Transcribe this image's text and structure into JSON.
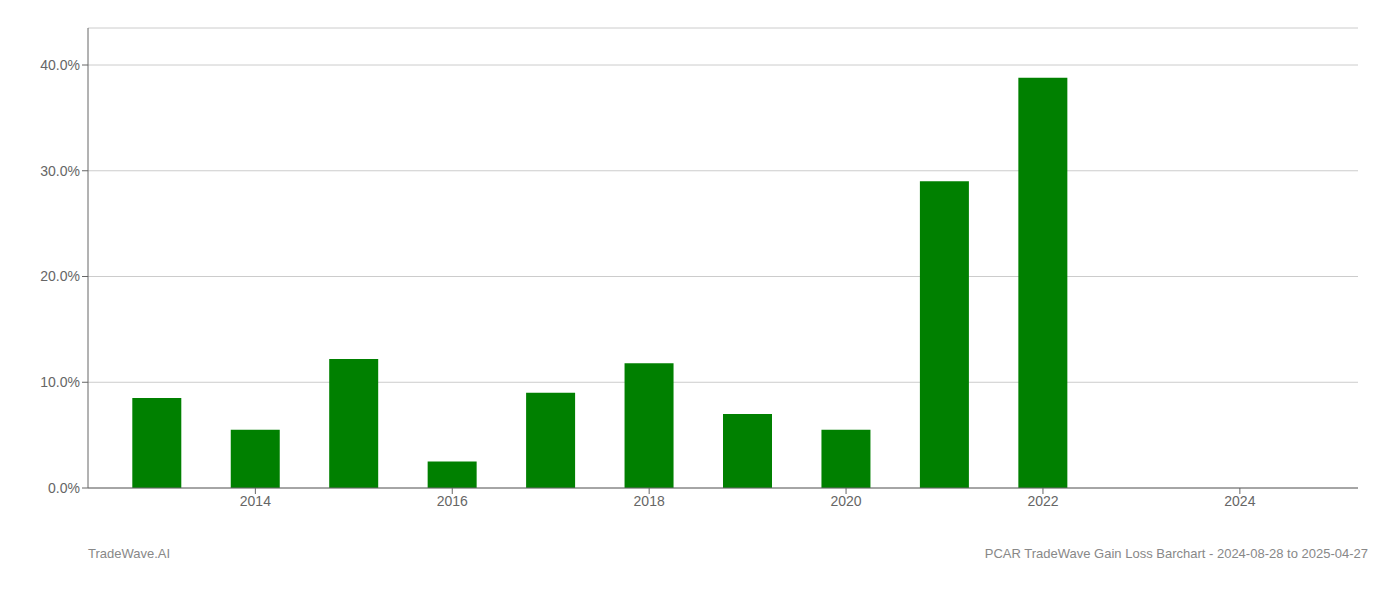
{
  "chart_data": {
    "type": "bar",
    "x": [
      2013,
      2014,
      2015,
      2016,
      2017,
      2018,
      2019,
      2020,
      2021,
      2022,
      2023
    ],
    "values": [
      0.085,
      0.055,
      0.122,
      0.025,
      0.09,
      0.118,
      0.07,
      0.055,
      0.29,
      0.388,
      0.0
    ],
    "color": "#008000",
    "xlim": [
      2012.3,
      2025.2
    ],
    "xticks": [
      2014,
      2016,
      2018,
      2020,
      2022,
      2024
    ],
    "ylim": [
      0,
      0.435
    ],
    "yticks": [
      {
        "value": 0.0,
        "label": "0.0%"
      },
      {
        "value": 0.1,
        "label": "10.0%"
      },
      {
        "value": 0.2,
        "label": "20.0%"
      },
      {
        "value": 0.3,
        "label": "30.0%"
      },
      {
        "value": 0.4,
        "label": "40.0%"
      }
    ],
    "grid": true,
    "annotations": [
      "TradeWave.AI",
      "PCAR TradeWave Gain Loss Barchart - 2024-08-28 to 2025-04-27"
    ]
  }
}
